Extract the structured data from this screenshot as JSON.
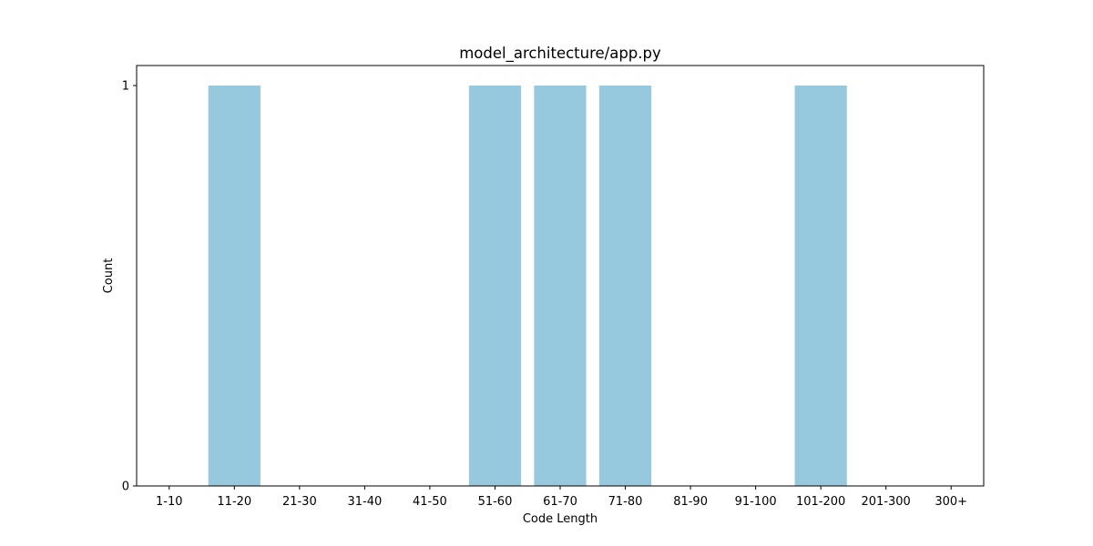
{
  "chart_data": {
    "type": "bar",
    "title": "model_architecture/app.py",
    "xlabel": "Code Length",
    "ylabel": "Count",
    "categories": [
      "1-10",
      "11-20",
      "21-30",
      "31-40",
      "41-50",
      "51-60",
      "61-70",
      "71-80",
      "81-90",
      "91-100",
      "101-200",
      "201-300",
      "300+"
    ],
    "values": [
      0,
      1,
      0,
      0,
      0,
      1,
      1,
      1,
      0,
      0,
      1,
      0,
      0
    ],
    "yticks": [
      0,
      1
    ],
    "ylim": [
      0,
      1.05
    ],
    "grid": false,
    "bar_color": "#96c9dd"
  }
}
